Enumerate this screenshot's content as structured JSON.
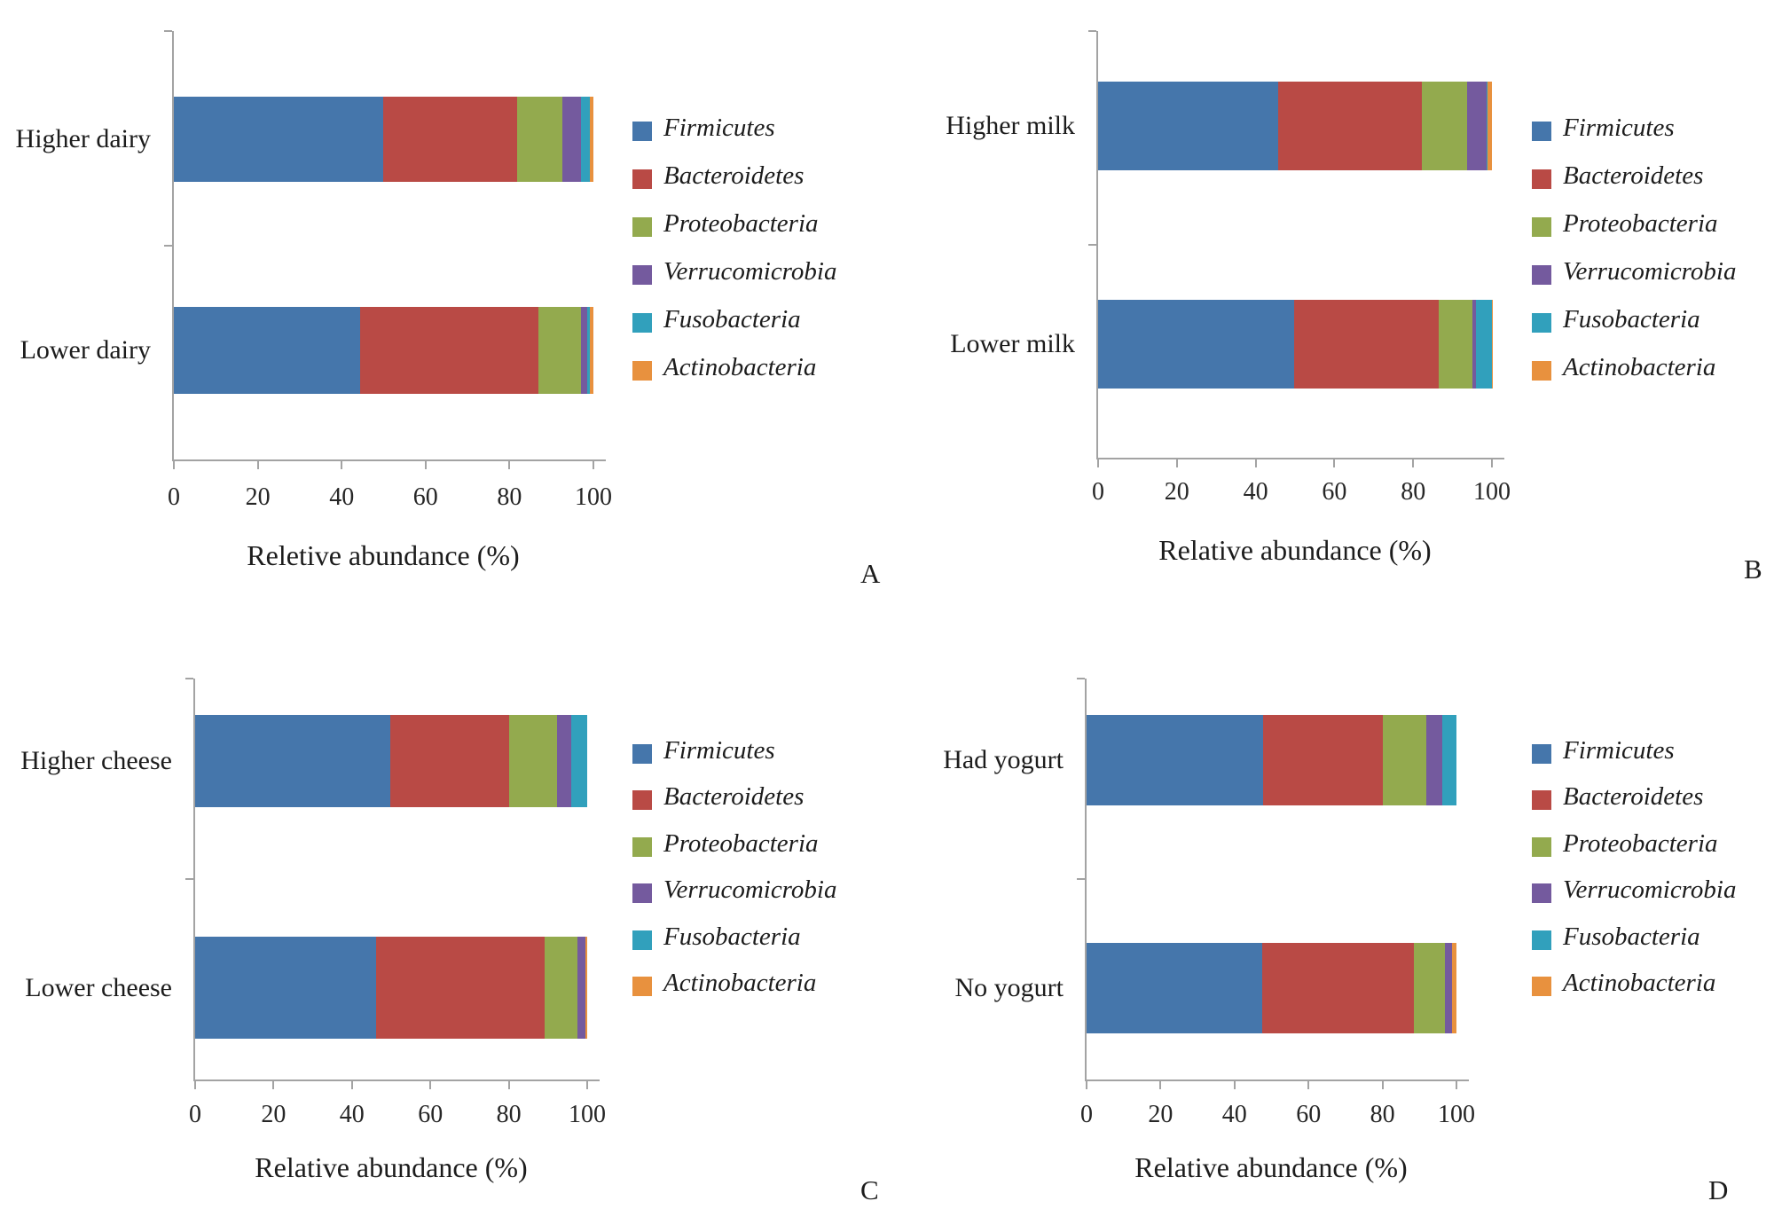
{
  "figure": {
    "background": "#ffffff",
    "text_color": "#1c1c1c",
    "axis_color": "#a3a3a3"
  },
  "series_colors": {
    "Firmicutes": "#4576ab",
    "Bacteroidetes": "#b94a45",
    "Proteobacteria": "#93aa4e",
    "Verrucomicrobia": "#745a9e",
    "Fusobacteria": "#31a0bc",
    "Actinobacteria": "#e8913e"
  },
  "chart_data": [
    {
      "panel": "A",
      "type": "bar",
      "orientation": "horizontal",
      "stacked": true,
      "xlabel": "Reletive abundance (%)",
      "xlim": [
        0,
        100
      ],
      "xticks": [
        0,
        20,
        40,
        60,
        80,
        100
      ],
      "grid": false,
      "legend_position": "right",
      "categories": [
        "Higher dairy",
        "Lower dairy"
      ],
      "legend": [
        "Firmicutes",
        "Bacteroidetes",
        "Proteobacteria",
        "Verrucomicrobia",
        "Fusobacteria",
        "Actinobacteria"
      ],
      "series": [
        {
          "name": "Firmicutes",
          "values": [
            49.9,
            44.5
          ]
        },
        {
          "name": "Bacteroidetes",
          "values": [
            32.0,
            42.4
          ]
        },
        {
          "name": "Proteobacteria",
          "values": [
            10.8,
            10.2
          ]
        },
        {
          "name": "Verrucomicrobia",
          "values": [
            4.3,
            1.4
          ]
        },
        {
          "name": "Fusobacteria",
          "values": [
            2.2,
            0.7
          ]
        },
        {
          "name": "Actinobacteria",
          "values": [
            0.8,
            0.8
          ]
        }
      ]
    },
    {
      "panel": "B",
      "type": "bar",
      "orientation": "horizontal",
      "stacked": true,
      "xlabel": "Relative abundance (%)",
      "xlim": [
        0,
        100
      ],
      "xticks": [
        0,
        20,
        40,
        60,
        80,
        100
      ],
      "grid": false,
      "legend_position": "right",
      "categories": [
        "Higher milk",
        "Lower milk"
      ],
      "legend": [
        "Firmicutes",
        "Bacteroidetes",
        "Proteobacteria",
        "Verrucomicrobia",
        "Fusobacteria",
        "Actinobacteria"
      ],
      "series": [
        {
          "name": "Firmicutes",
          "values": [
            45.7,
            49.8
          ]
        },
        {
          "name": "Bacteroidetes",
          "values": [
            36.4,
            36.6
          ]
        },
        {
          "name": "Proteobacteria",
          "values": [
            11.6,
            8.6
          ]
        },
        {
          "name": "Verrucomicrobia",
          "values": [
            4.9,
            1.0
          ]
        },
        {
          "name": "Fusobacteria",
          "values": [
            0.2,
            3.9
          ]
        },
        {
          "name": "Actinobacteria",
          "values": [
            1.2,
            0.1
          ]
        }
      ]
    },
    {
      "panel": "C",
      "type": "bar",
      "orientation": "horizontal",
      "stacked": true,
      "xlabel": "Relative abundance (%)",
      "xlim": [
        0,
        100
      ],
      "xticks": [
        0,
        20,
        40,
        60,
        80,
        100
      ],
      "grid": false,
      "legend_position": "right",
      "categories": [
        "Higher cheese",
        "Lower cheese"
      ],
      "legend": [
        "Firmicutes",
        "Bacteroidetes",
        "Proteobacteria",
        "Verrucomicrobia",
        "Fusobacteria",
        "Actinobacteria"
      ],
      "series": [
        {
          "name": "Firmicutes",
          "values": [
            49.7,
            46.1
          ]
        },
        {
          "name": "Bacteroidetes",
          "values": [
            30.5,
            43.1
          ]
        },
        {
          "name": "Proteobacteria",
          "values": [
            12.2,
            8.3
          ]
        },
        {
          "name": "Verrucomicrobia",
          "values": [
            3.6,
            2.0
          ]
        },
        {
          "name": "Fusobacteria",
          "values": [
            4.0,
            0.0
          ]
        },
        {
          "name": "Actinobacteria",
          "values": [
            0.0,
            0.5
          ]
        }
      ]
    },
    {
      "panel": "D",
      "type": "bar",
      "orientation": "horizontal",
      "stacked": true,
      "xlabel": "Relative abundance (%)",
      "xlim": [
        0,
        100
      ],
      "xticks": [
        0,
        20,
        40,
        60,
        80,
        100
      ],
      "grid": false,
      "legend_position": "right",
      "categories": [
        "Had yogurt",
        "No yogurt"
      ],
      "legend": [
        "Firmicutes",
        "Bacteroidetes",
        "Proteobacteria",
        "Verrucomicrobia",
        "Fusobacteria",
        "Actinobacteria"
      ],
      "series": [
        {
          "name": "Firmicutes",
          "values": [
            47.8,
            47.4
          ]
        },
        {
          "name": "Bacteroidetes",
          "values": [
            32.2,
            41.0
          ]
        },
        {
          "name": "Proteobacteria",
          "values": [
            11.8,
            8.6
          ]
        },
        {
          "name": "Verrucomicrobia",
          "values": [
            4.4,
            1.8
          ]
        },
        {
          "name": "Fusobacteria",
          "values": [
            3.8,
            0.0
          ]
        },
        {
          "name": "Actinobacteria",
          "values": [
            0.0,
            1.2
          ]
        }
      ]
    }
  ]
}
